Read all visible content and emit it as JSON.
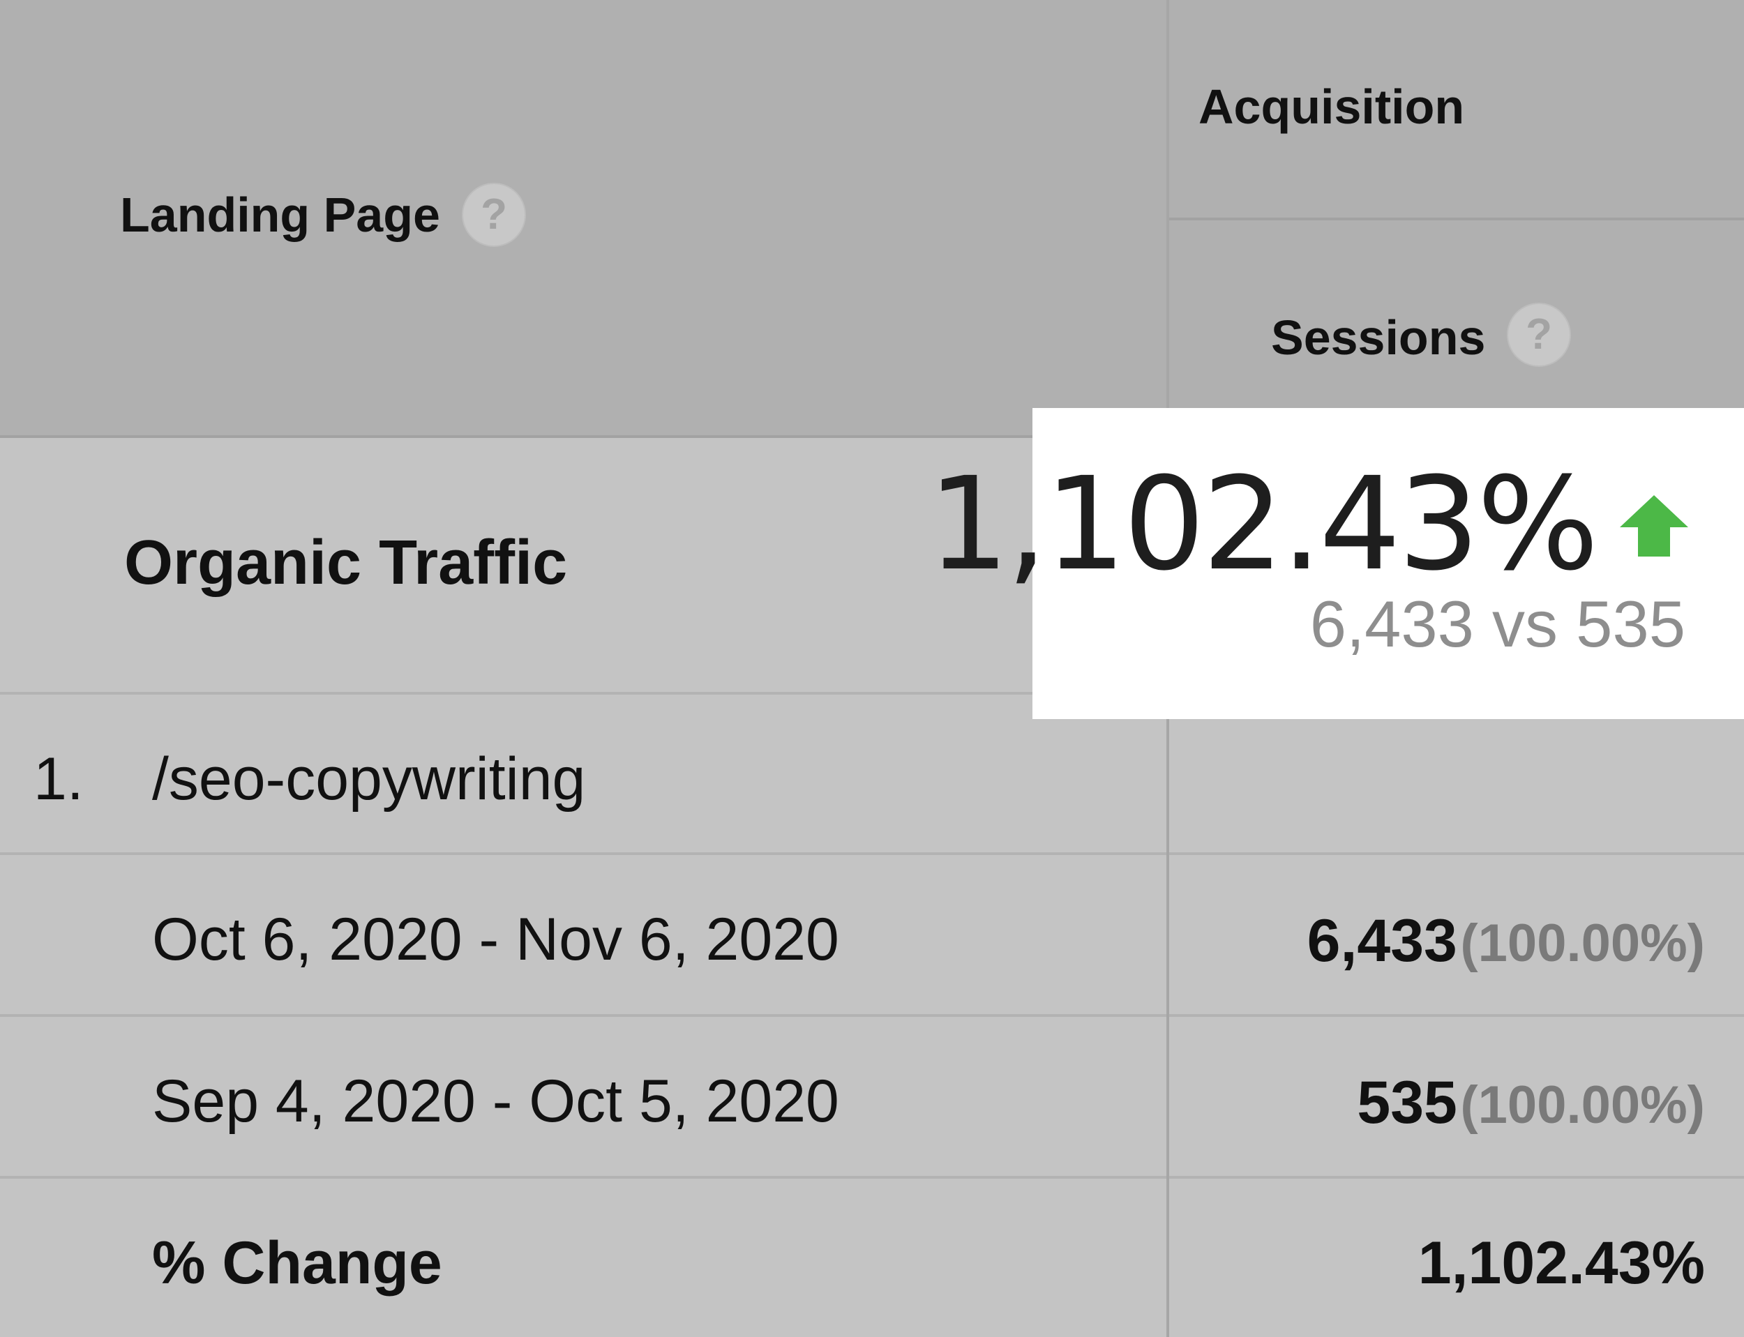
{
  "table": {
    "header": {
      "landing_page_label": "Landing Page",
      "acquisition_label": "Acquisition",
      "sessions_label": "Sessions",
      "help_glyph": "?"
    },
    "segment": {
      "name": "Organic Traffic"
    },
    "rows": [
      {
        "index": "1.",
        "page": "/seo-copywriting"
      },
      {
        "period": "Oct 6, 2020 - Nov 6, 2020",
        "sessions": "6,433",
        "sessions_pct": "(100.00%)"
      },
      {
        "period": "Sep 4, 2020 - Oct 5, 2020",
        "sessions": "535",
        "sessions_pct": "(100.00%)"
      },
      {
        "period": "% Change",
        "sessions": "1,102.43%"
      }
    ]
  },
  "highlight": {
    "change_value": "1,102.43%",
    "comparison": "6,433 vs 535",
    "trend_icon": "arrow-up-icon",
    "trend_color": "#4cb847"
  },
  "colors": {
    "header_bg": "#b0b0b0",
    "body_bg": "#c4c4c4",
    "highlight_bg": "#ffffff"
  }
}
